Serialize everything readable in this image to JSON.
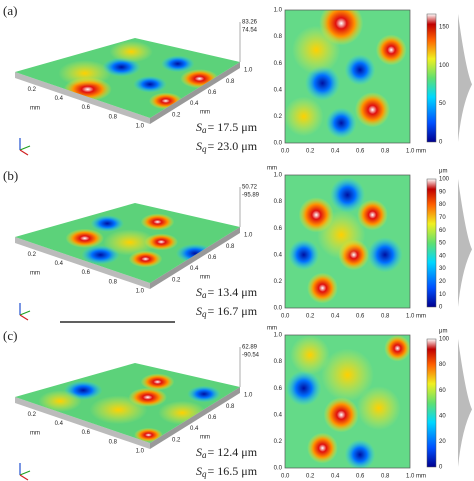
{
  "panels": [
    {
      "label": "(a)",
      "surface_top": "83.26",
      "surface_bottom": "74.54",
      "surface_unit": "mm",
      "surface_x_ticks": [
        "0.2",
        "0.4",
        "0.6",
        "0.8",
        "1.0"
      ],
      "surface_y_ticks": [
        "0.2",
        "0.4",
        "0.6",
        "0.8",
        "1.0"
      ],
      "sa": {
        "symbol": "S",
        "subscript": "a",
        "text": "= 17.5 μm"
      },
      "sq": {
        "symbol": "S",
        "subscript": "q",
        "text": "= 23.0 μm"
      },
      "map_y_ticks": [
        "1.0",
        "0.8",
        "0.6",
        "0.4",
        "0.2",
        "0.0"
      ],
      "map_x_ticks": [
        "0.0",
        "0.2",
        "0.4",
        "0.6",
        "0.8",
        "1.0 mm"
      ],
      "colorbar_ticks": [
        "0",
        "50",
        "100",
        "150"
      ]
    },
    {
      "label": "(b)",
      "surface_top": "50.72",
      "surface_bottom": "-95.89",
      "surface_unit": "mm",
      "surface_x_ticks": [
        "0.2",
        "0.4",
        "0.6",
        "0.8",
        "1.0"
      ],
      "surface_y_ticks": [
        "0.2",
        "0.4",
        "0.6",
        "0.8",
        "1.0"
      ],
      "sa": {
        "symbol": "S",
        "subscript": "a",
        "text": "= 13.4 μm"
      },
      "sq": {
        "symbol": "S",
        "subscript": "q",
        "text": "= 16.7 μm"
      },
      "map_y_unit": "mm",
      "map_y_ticks": [
        "1.0",
        "0.8",
        "0.6",
        "0.4",
        "0.2",
        "0.0"
      ],
      "map_x_ticks": [
        "0.0",
        "0.2",
        "0.4",
        "0.6",
        "0.8",
        "1.0 mm"
      ],
      "colorbar_unit": "μm",
      "colorbar_ticks": [
        "0",
        "10",
        "20",
        "30",
        "40",
        "50",
        "60",
        "70",
        "80",
        "90",
        "100"
      ]
    },
    {
      "label": "(c)",
      "surface_top": "62.89",
      "surface_bottom": "-90.54",
      "surface_unit": "mm",
      "surface_x_ticks": [
        "0.2",
        "0.4",
        "0.6",
        "0.8",
        "1.0"
      ],
      "surface_y_ticks": [
        "0.2",
        "0.4",
        "0.6",
        "0.8",
        "1.0"
      ],
      "sa": {
        "symbol": "S",
        "subscript": "a",
        "text": "= 12.4 μm"
      },
      "sq": {
        "symbol": "S",
        "subscript": "q",
        "text": "= 16.5 μm"
      },
      "map_y_unit": "mm",
      "map_y_ticks": [
        "1.0",
        "0.8",
        "0.6",
        "0.4",
        "0.2",
        "0.0"
      ],
      "map_x_ticks": [
        "0.0",
        "0.2",
        "0.4",
        "0.6",
        "0.8",
        "1.0 mm"
      ],
      "colorbar_unit": "μm",
      "colorbar_ticks": [
        "0",
        "20",
        "40",
        "60",
        "80",
        "100"
      ]
    }
  ]
}
